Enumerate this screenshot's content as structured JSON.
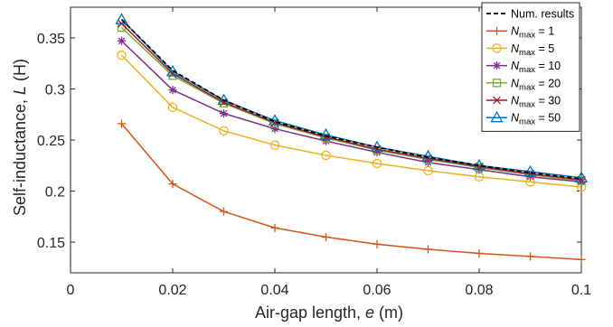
{
  "chart_data": {
    "type": "line",
    "xlabel": "Air-gap length, ",
    "xlabel_var": "e",
    "xlabel_unit": " (m)",
    "ylabel": "Self-inductance, ",
    "ylabel_var": "L",
    "ylabel_unit": " (H)",
    "xlim": [
      0,
      0.1
    ],
    "ylim": [
      0.12,
      0.38
    ],
    "xticks": [
      0,
      0.02,
      0.04,
      0.06,
      0.08,
      0.1
    ],
    "xtick_labels": [
      "0",
      "0.02",
      "0.04",
      "0.06",
      "0.08",
      "0.1"
    ],
    "yticks": [
      0.15,
      0.2,
      0.25,
      0.3,
      0.35
    ],
    "ytick_labels": [
      "0.15",
      "0.2",
      "0.25",
      "0.3",
      "0.35"
    ],
    "grid": false,
    "legend_position": "top-right",
    "x": [
      0.01,
      0.02,
      0.03,
      0.04,
      0.05,
      0.06,
      0.07,
      0.08,
      0.09,
      0.1
    ],
    "series": [
      {
        "name": "Num. results",
        "legend_main": "Num. results",
        "legend_sub": "",
        "legend_tail": "",
        "color": "#000000",
        "marker": "none",
        "dashed": true,
        "values": [
          0.368,
          0.318,
          0.289,
          0.268,
          0.254,
          0.243,
          0.233,
          0.225,
          0.218,
          0.212
        ]
      },
      {
        "name": "N_max = 1",
        "legend_main": "N",
        "legend_sub": "max",
        "legend_tail": " = 1",
        "color": "#d95319",
        "marker": "plus",
        "dashed": false,
        "values": [
          0.266,
          0.207,
          0.18,
          0.164,
          0.155,
          0.148,
          0.143,
          0.139,
          0.136,
          0.133
        ]
      },
      {
        "name": "N_max = 5",
        "legend_main": "N",
        "legend_sub": "max",
        "legend_tail": " = 5",
        "color": "#edb120",
        "marker": "circle",
        "dashed": false,
        "values": [
          0.333,
          0.282,
          0.259,
          0.245,
          0.235,
          0.227,
          0.22,
          0.214,
          0.209,
          0.204
        ]
      },
      {
        "name": "N_max = 10",
        "legend_main": "N",
        "legend_sub": "max",
        "legend_tail": " = 10",
        "color": "#7e2f8e",
        "marker": "star",
        "dashed": false,
        "values": [
          0.347,
          0.299,
          0.276,
          0.261,
          0.249,
          0.238,
          0.228,
          0.221,
          0.214,
          0.209
        ]
      },
      {
        "name": "N_max = 20",
        "legend_main": "N",
        "legend_sub": "max",
        "legend_tail": " = 20",
        "color": "#77ac30",
        "marker": "square",
        "dashed": false,
        "values": [
          0.36,
          0.313,
          0.286,
          0.266,
          0.252,
          0.24,
          0.231,
          0.223,
          0.216,
          0.21
        ]
      },
      {
        "name": "N_max = 30",
        "legend_main": "N",
        "legend_sub": "max",
        "legend_tail": " = 30",
        "color": "#a2142f",
        "marker": "x",
        "dashed": false,
        "values": [
          0.364,
          0.315,
          0.287,
          0.267,
          0.253,
          0.241,
          0.232,
          0.224,
          0.217,
          0.211
        ]
      },
      {
        "name": "N_max = 50",
        "legend_main": "N",
        "legend_sub": "max",
        "legend_tail": " = 50",
        "color": "#0072bd",
        "marker": "triangle",
        "dashed": false,
        "values": [
          0.368,
          0.317,
          0.289,
          0.269,
          0.255,
          0.243,
          0.234,
          0.225,
          0.219,
          0.213
        ]
      }
    ]
  }
}
